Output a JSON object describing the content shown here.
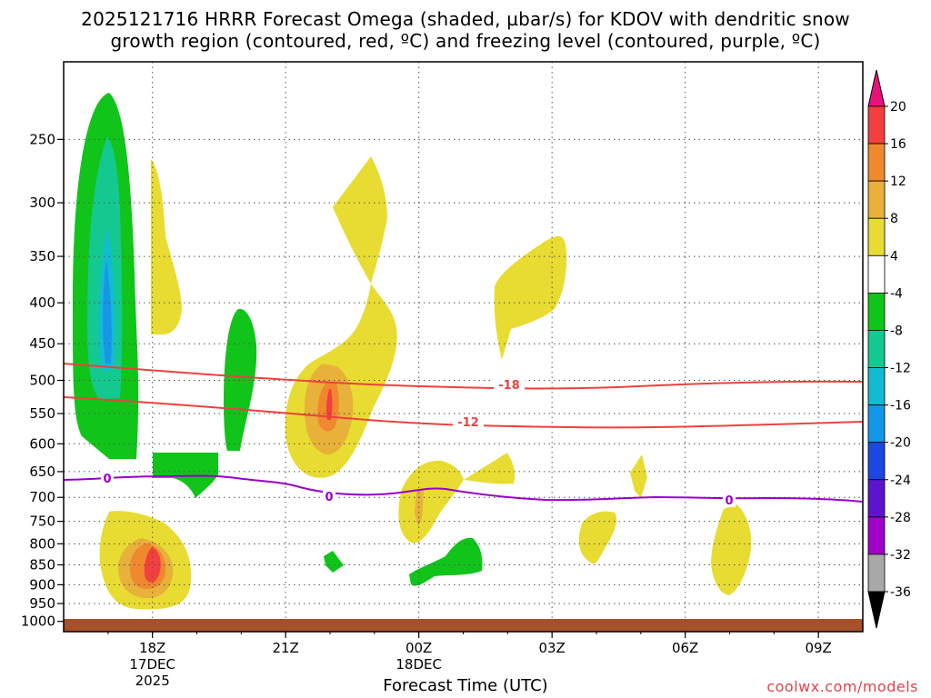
{
  "chart_data": {
    "type": "heatmap",
    "title": "2025121716 HRRR Forecast Omega (shaded, µbar/s) for KDOV with dendritic snow",
    "subtitle": "growth region (contoured, red, ºC) and freezing level (contoured, purple, ºC)",
    "xlabel": "Forecast Time (UTC)",
    "ylabel": "",
    "x_ticks": [
      {
        "label": "18Z",
        "sub1": "17DEC",
        "sub2": "2025",
        "hour": 2
      },
      {
        "label": "21Z",
        "sub1": "",
        "sub2": "",
        "hour": 5
      },
      {
        "label": "00Z",
        "sub1": "18DEC",
        "sub2": "",
        "hour": 8
      },
      {
        "label": "03Z",
        "sub1": "",
        "sub2": "",
        "hour": 11
      },
      {
        "label": "06Z",
        "sub1": "",
        "sub2": "",
        "hour": 14
      },
      {
        "label": "09Z",
        "sub1": "",
        "sub2": "",
        "hour": 17
      }
    ],
    "x_range_hours": [
      0,
      18
    ],
    "y_ticks": [
      "250",
      "300",
      "350",
      "400",
      "450",
      "500",
      "550",
      "600",
      "650",
      "700",
      "750",
      "800",
      "850",
      "900",
      "950",
      "1000"
    ],
    "y_range_hPa": [
      200,
      1030
    ],
    "y_scale": "log-pressure",
    "grid": true,
    "colorbar": {
      "labels": [
        "20",
        "16",
        "12",
        "8",
        "4",
        "-4",
        "-8",
        "-12",
        "-16",
        "-20",
        "-24",
        "-28",
        "-32",
        "-36"
      ],
      "colors": [
        "#f23f3f",
        "#f0882e",
        "#e8b13a",
        "#e8dc32",
        "#ffffff",
        "#10c41a",
        "#14c98f",
        "#12bcd0",
        "#1696e8",
        "#1c47e0",
        "#5d14cc",
        "#a000c8",
        "#a8a8a8"
      ],
      "top_arrow_color": "#e8127a",
      "bottom_arrow_color": "#000000"
    },
    "contours": [
      {
        "value": "-18",
        "color": "#ee4040"
      },
      {
        "value": "-12",
        "color": "#ee4040"
      },
      {
        "value": "0",
        "color": "#9a00c8"
      }
    ],
    "ground_color": "#a8502a"
  },
  "credit": "coolwx.com/models"
}
